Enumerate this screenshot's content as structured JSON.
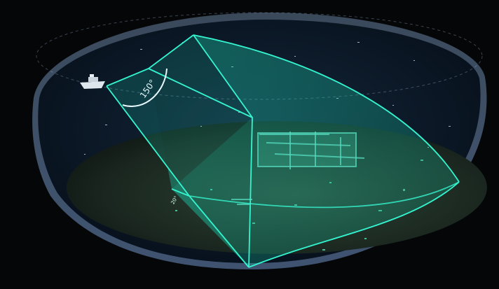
{
  "illustration": {
    "fan_angle_label": "150°",
    "depth_label": "20°"
  },
  "colors": {
    "background": "#050608",
    "water": "#0b1b2b",
    "seabed": "#1b2620",
    "beam": "#1de6c1",
    "beam_fill": "#1aa88f",
    "shell": "#7fa8d8"
  },
  "icons": {
    "boat": "boat-icon"
  }
}
